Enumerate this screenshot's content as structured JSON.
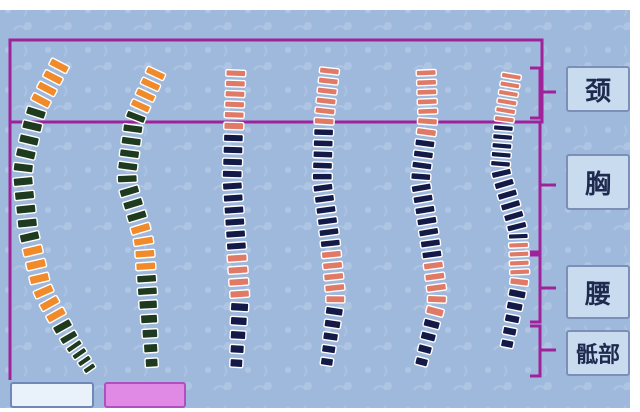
{
  "region_labels": [
    "颈",
    "胸",
    "腰",
    "骶部"
  ],
  "colors": {
    "background": "#9fb9dc",
    "background_pattern": "#b7cce8",
    "bracket_line": "#a0229a",
    "orange": "#f08a2a",
    "dark_green": "#1e3a1f",
    "salmon": "#e07a66",
    "navy": "#141a48",
    "white": "#ffffff"
  },
  "spines": [
    {
      "name": "spine-1",
      "segments": [
        {
          "color": "orange",
          "count": 4
        },
        {
          "color": "dark_green",
          "count": 10
        },
        {
          "color": "orange",
          "count": 6
        },
        {
          "color": "dark_green",
          "count": 6
        }
      ]
    },
    {
      "name": "spine-2",
      "segments": [
        {
          "color": "orange",
          "count": 4
        },
        {
          "color": "dark_green",
          "count": 9
        },
        {
          "color": "orange",
          "count": 4
        },
        {
          "color": "dark_green",
          "count": 7
        }
      ]
    },
    {
      "name": "spine-3",
      "segments": [
        {
          "color": "salmon",
          "count": 6
        },
        {
          "color": "navy",
          "count": 10
        },
        {
          "color": "salmon",
          "count": 4
        },
        {
          "color": "navy",
          "count": 5
        }
      ]
    },
    {
      "name": "spine-4",
      "segments": [
        {
          "color": "salmon",
          "count": 6
        },
        {
          "color": "navy",
          "count": 11
        },
        {
          "color": "salmon",
          "count": 5
        },
        {
          "color": "navy",
          "count": 5
        }
      ]
    },
    {
      "name": "spine-5",
      "segments": [
        {
          "color": "salmon",
          "count": 7
        },
        {
          "color": "navy",
          "count": 11
        },
        {
          "color": "salmon",
          "count": 5
        },
        {
          "color": "navy",
          "count": 4
        }
      ]
    },
    {
      "name": "spine-6",
      "segments": [
        {
          "color": "salmon",
          "count": 6
        },
        {
          "color": "navy",
          "count": 12
        },
        {
          "color": "salmon",
          "count": 5
        },
        {
          "color": "navy",
          "count": 5
        }
      ]
    }
  ]
}
